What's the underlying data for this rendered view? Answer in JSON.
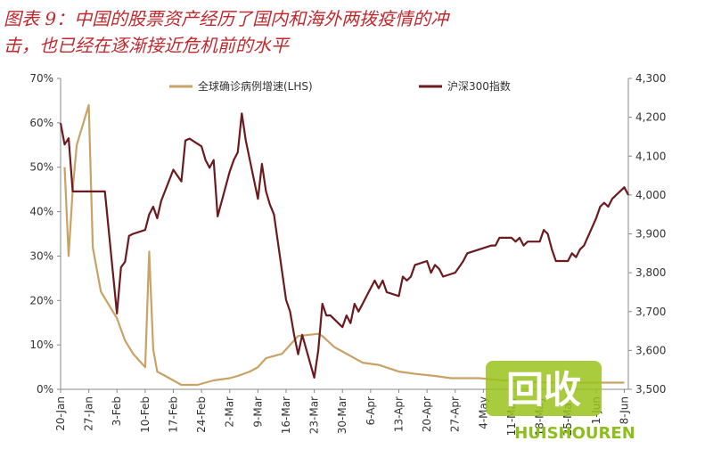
{
  "chart_data": {
    "type": "line",
    "title": [
      "图表 9：中国的股票资产经历了国内和海外两拨疫情的冲",
      "击，也已经在逐渐接近危机前的水平"
    ],
    "xlim": [
      "20-Jan",
      "9-Jun"
    ],
    "xticks": [
      "20-Jan",
      "27-Jan",
      "3-Feb",
      "10-Feb",
      "17-Feb",
      "24-Feb",
      "2-Mar",
      "9-Mar",
      "16-Mar",
      "23-Mar",
      "30-Mar",
      "6-Apr",
      "13-Apr",
      "20-Apr",
      "27-Apr",
      "4-May",
      "11-May",
      "18-May",
      "25-May",
      "1-Jun",
      "8-Jun"
    ],
    "ylim": [
      0,
      70
    ],
    "yticks": [
      {
        "value": 0,
        "label": "0%"
      },
      {
        "value": 10,
        "label": "10%"
      },
      {
        "value": 20,
        "label": "20%"
      },
      {
        "value": 30,
        "label": "30%"
      },
      {
        "value": 40,
        "label": "40%"
      },
      {
        "value": 50,
        "label": "50%"
      },
      {
        "value": 60,
        "label": "60%"
      },
      {
        "value": 70,
        "label": "70%"
      }
    ],
    "y2lim": [
      3500,
      4300
    ],
    "y2ticks": [
      {
        "value": 3500,
        "label": "3,500"
      },
      {
        "value": 3600,
        "label": "3,600"
      },
      {
        "value": 3700,
        "label": "3,700"
      },
      {
        "value": 3800,
        "label": "3,800"
      },
      {
        "value": 3900,
        "label": "3,900"
      },
      {
        "value": 4000,
        "label": "4,000"
      },
      {
        "value": 4100,
        "label": "4,100"
      },
      {
        "value": 4200,
        "label": "4,200"
      },
      {
        "value": 4300,
        "label": "4,300"
      }
    ],
    "legend": "top",
    "series": [
      {
        "name": "全球确诊病例增速(LHS)",
        "color": "#c9a266",
        "x": [
          "21-Jan",
          "22-Jan",
          "23-Jan",
          "24-Jan",
          "27-Jan",
          "28-Jan",
          "30-Jan",
          "1-Feb",
          "3-Feb",
          "5-Feb",
          "7-Feb",
          "10-Feb",
          "11-Feb",
          "12-Feb",
          "13-Feb",
          "15-Feb",
          "19-Feb",
          "23-Feb",
          "27-Feb",
          "2-Mar",
          "4-Mar",
          "7-Mar",
          "9-Mar",
          "11-Mar",
          "15-Mar",
          "17-Mar",
          "19-Mar",
          "24-Mar",
          "25-Mar",
          "28-Mar",
          "31-Mar",
          "4-Apr",
          "8-Apr",
          "13-Apr",
          "17-Apr",
          "22-Apr",
          "26-Apr",
          "3-May",
          "9-May",
          "20-May",
          "29-May",
          "8-Jun"
        ],
        "values": [
          50,
          30,
          45,
          55,
          64,
          32,
          22,
          19,
          16,
          11,
          8,
          5,
          31,
          9,
          4,
          3,
          1,
          1,
          2,
          2.5,
          3,
          4,
          5,
          7,
          8,
          10,
          12,
          12.5,
          12,
          9.5,
          8,
          6,
          5.5,
          4,
          3.5,
          3,
          2.5,
          2.5,
          2,
          1.5,
          1.5,
          1.5
        ]
      },
      {
        "name": "沪深300指数",
        "color": "#6b1a1e",
        "axis": "y2",
        "x": [
          "20-Jan",
          "21-Jan",
          "22-Jan",
          "23-Jan",
          "31-Jan",
          "3-Feb",
          "4-Feb",
          "5-Feb",
          "6-Feb",
          "7-Feb",
          "10-Feb",
          "11-Feb",
          "12-Feb",
          "13-Feb",
          "14-Feb",
          "17-Feb",
          "18-Feb",
          "19-Feb",
          "20-Feb",
          "21-Feb",
          "24-Feb",
          "25-Feb",
          "26-Feb",
          "27-Feb",
          "28-Feb",
          "2-Mar",
          "3-Mar",
          "4-Mar",
          "5-Mar",
          "6-Mar",
          "9-Mar",
          "10-Mar",
          "11-Mar",
          "12-Mar",
          "13-Mar",
          "16-Mar",
          "17-Mar",
          "18-Mar",
          "19-Mar",
          "20-Mar",
          "23-Mar",
          "24-Mar",
          "25-Mar",
          "26-Mar",
          "27-Mar",
          "30-Mar",
          "31-Mar",
          "1-Apr",
          "2-Apr",
          "3-Apr",
          "7-Apr",
          "8-Apr",
          "9-Apr",
          "10-Apr",
          "13-Apr",
          "14-Apr",
          "15-Apr",
          "16-Apr",
          "17-Apr",
          "20-Apr",
          "21-Apr",
          "22-Apr",
          "23-Apr",
          "24-Apr",
          "27-Apr",
          "28-Apr",
          "29-Apr",
          "30-Apr",
          "6-May",
          "7-May",
          "8-May",
          "11-May",
          "12-May",
          "13-May",
          "14-May",
          "15-May",
          "18-May",
          "19-May",
          "20-May",
          "21-May",
          "22-May",
          "25-May",
          "26-May",
          "27-May",
          "28-May",
          "29-May",
          "1-Jun",
          "2-Jun",
          "3-Jun",
          "4-Jun",
          "5-Jun",
          "8-Jun",
          "9-Jun"
        ],
        "values": [
          4185,
          4130,
          4146,
          4009,
          4009,
          3695,
          3814,
          3828,
          3895,
          3900,
          3910,
          3950,
          3970,
          3940,
          3985,
          4065,
          4050,
          4035,
          4140,
          4145,
          4125,
          4090,
          4070,
          4090,
          3945,
          4060,
          4090,
          4110,
          4210,
          4140,
          3990,
          4080,
          4010,
          3975,
          3950,
          3730,
          3700,
          3640,
          3590,
          3640,
          3530,
          3600,
          3720,
          3690,
          3690,
          3660,
          3690,
          3670,
          3720,
          3700,
          3780,
          3760,
          3780,
          3750,
          3740,
          3790,
          3780,
          3790,
          3820,
          3830,
          3800,
          3820,
          3810,
          3790,
          3800,
          3815,
          3830,
          3850,
          3870,
          3870,
          3890,
          3890,
          3880,
          3890,
          3870,
          3880,
          3880,
          3910,
          3900,
          3860,
          3830,
          3830,
          3850,
          3840,
          3860,
          3870,
          3940,
          3970,
          3980,
          3970,
          3990,
          4020,
          4000
        ]
      }
    ]
  },
  "watermark": {
    "logo": "回收",
    "text": "HUISHOUREN"
  }
}
